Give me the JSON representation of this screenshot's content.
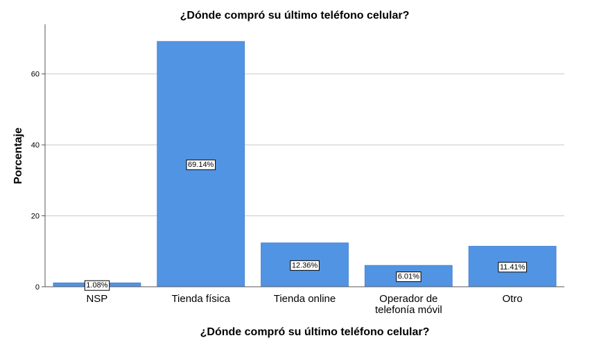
{
  "chart_data": {
    "type": "bar",
    "title": "¿Dónde compró su último teléfono celular?",
    "xlabel": "¿Dónde compró su último teléfono celular?",
    "ylabel": "Porcentaje",
    "ylim": [
      0,
      74
    ],
    "yticks": [
      0,
      20,
      40,
      60
    ],
    "grid": true,
    "categories": [
      [
        "NSP"
      ],
      [
        "Tienda física"
      ],
      [
        "Tienda online"
      ],
      [
        "Operador de",
        "telefonía móvil"
      ],
      [
        "Otro"
      ]
    ],
    "values": [
      1.08,
      69.14,
      12.36,
      6.01,
      11.41
    ],
    "data_labels": [
      "1.08%",
      "69.14%",
      "12.36%",
      "6.01%",
      "11.41%"
    ],
    "bar_color": "#5294e4"
  }
}
